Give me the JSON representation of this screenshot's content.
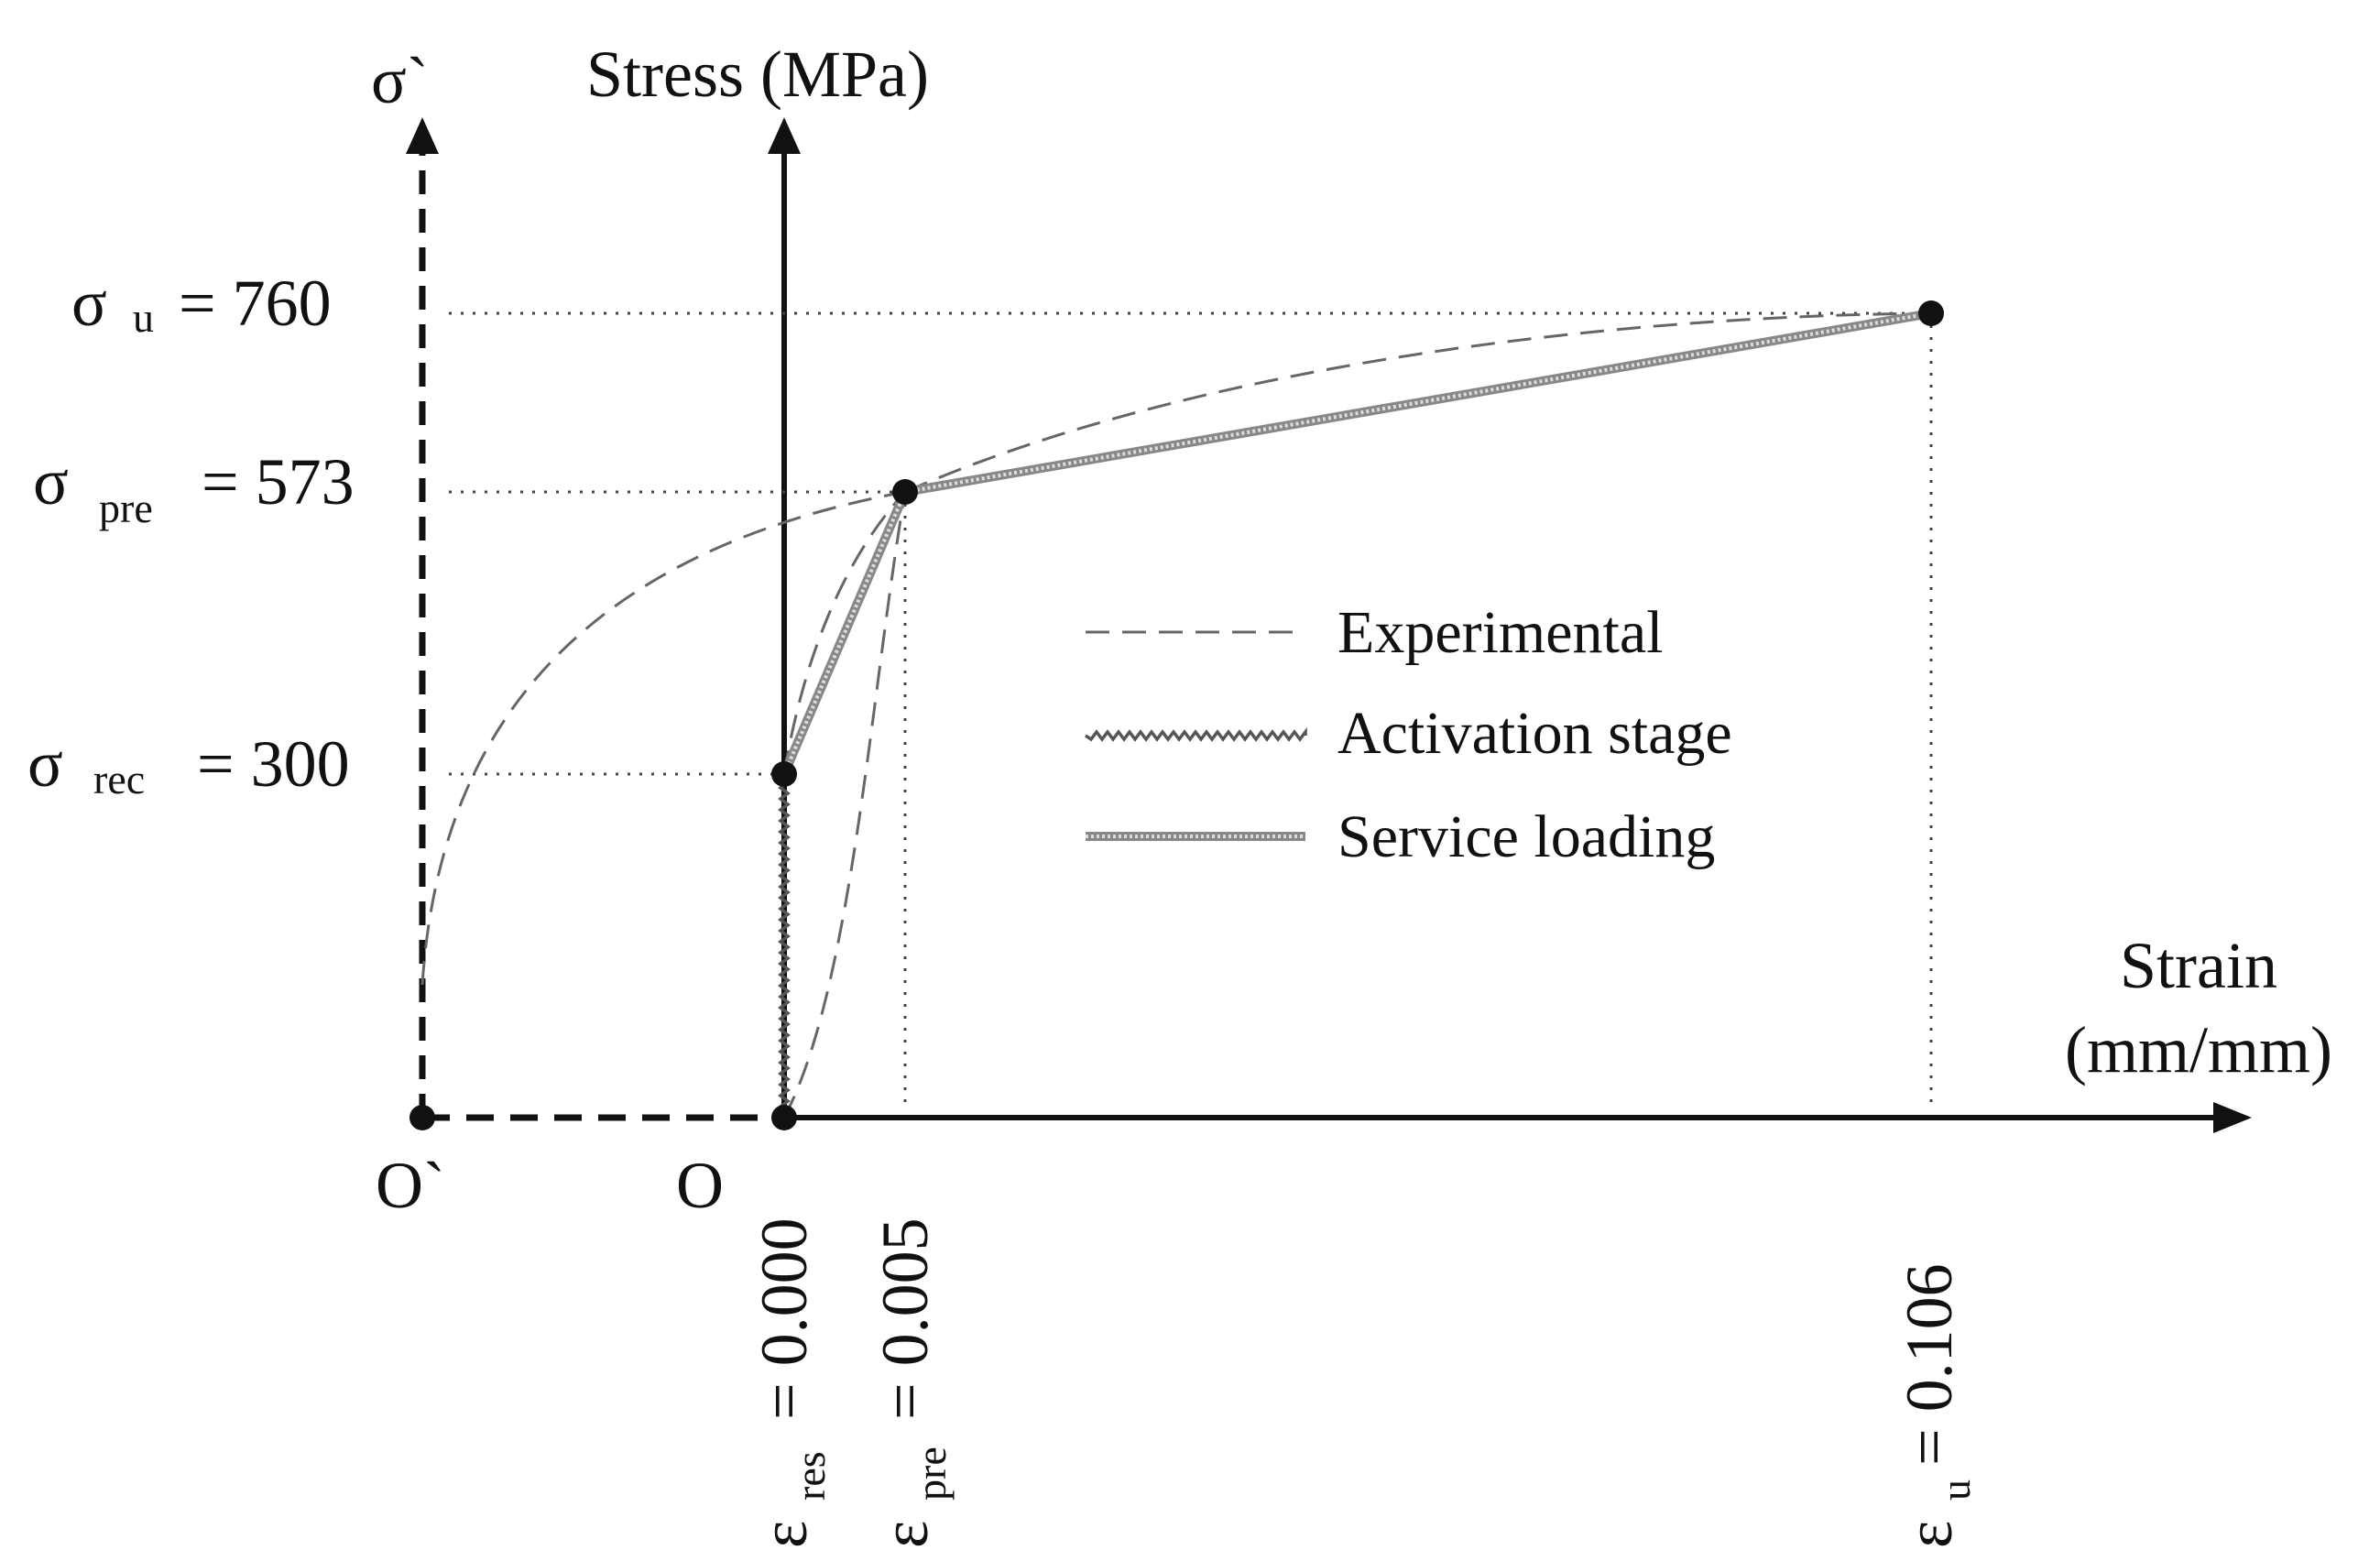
{
  "axes": {
    "y_title": "Stress (MPa)",
    "y_prime_title": "σ`",
    "x_title_line1": "Strain",
    "x_title_line2": "(mm/mm)",
    "origin_label": "O",
    "origin_prime_label": "O`"
  },
  "stress_labels": {
    "u": {
      "sym": "σ",
      "sub": "u",
      "eq": "= 760",
      "value": 760
    },
    "pre": {
      "sym": "σ",
      "sub": "pre",
      "eq": "= 573",
      "value": 573
    },
    "rec": {
      "sym": "σ",
      "sub": "rec",
      "eq": "= 300",
      "value": 300
    }
  },
  "strain_labels": {
    "res": {
      "sym": "ε",
      "sub": "res",
      "eq": "= 0.000",
      "value": 0.0
    },
    "pre": {
      "sym": "ε",
      "sub": "pre",
      "eq": "= 0.005",
      "value": 0.005
    },
    "u": {
      "sym": "ε",
      "sub": "u",
      "eq": "= 0.106",
      "value": 0.106
    }
  },
  "legend": {
    "experimental": "Experimental",
    "activation": "Activation stage",
    "service": "Service loading"
  },
  "chart_data": {
    "type": "line",
    "title": "",
    "xlabel": "Strain (mm/mm)",
    "ylabel": "Stress (MPa)",
    "series": [
      {
        "name": "Activation stage",
        "x": [
          0.0,
          0.0
        ],
        "y": [
          0,
          300
        ]
      },
      {
        "name": "Service loading",
        "x": [
          0.0,
          0.005,
          0.106
        ],
        "y": [
          300,
          573,
          760
        ]
      },
      {
        "name": "Experimental",
        "x": [
          0.0,
          0.005,
          0.106
        ],
        "y": [
          0,
          573,
          760
        ]
      }
    ],
    "points": [
      {
        "x": 0.0,
        "y": 0
      },
      {
        "x": 0.0,
        "y": 300
      },
      {
        "x": 0.005,
        "y": 573
      },
      {
        "x": 0.106,
        "y": 760
      }
    ]
  },
  "colors": {
    "axis": "#111111",
    "experimental": "#666666",
    "service": "#777777",
    "activation": "#555555"
  }
}
